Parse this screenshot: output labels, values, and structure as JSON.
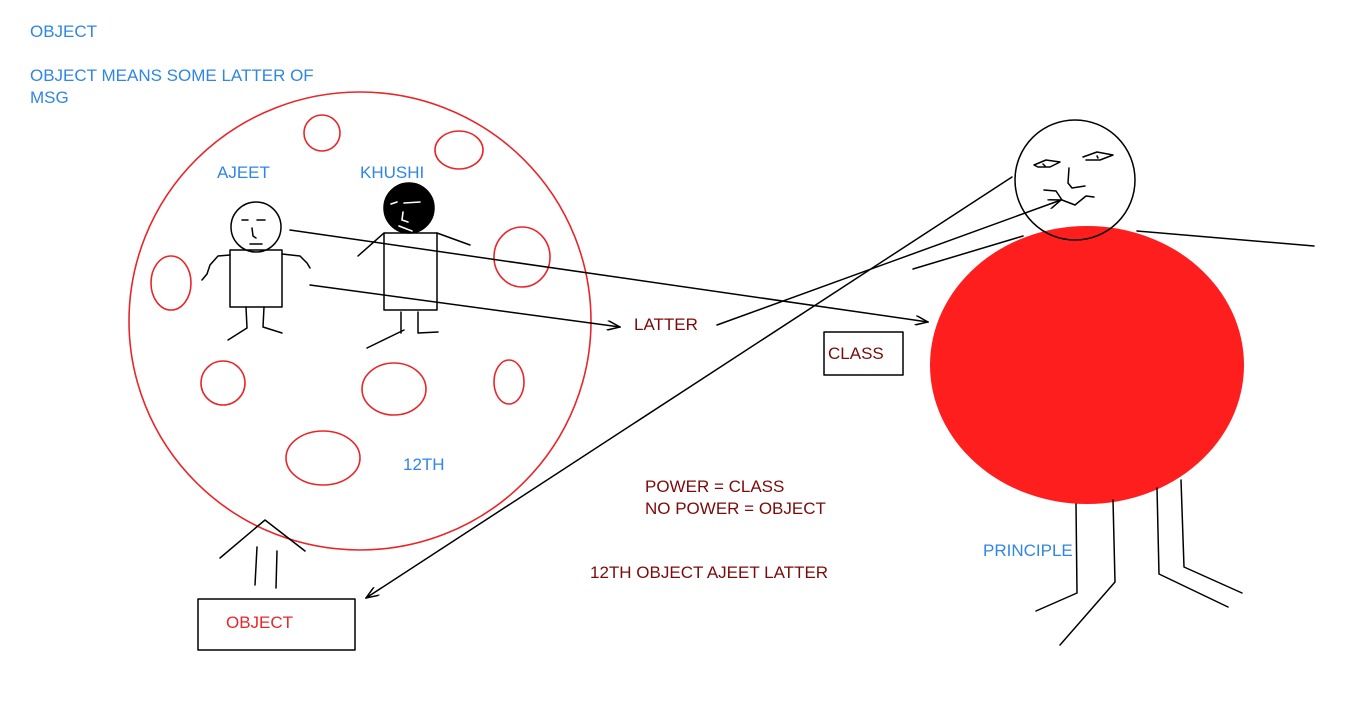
{
  "header": {
    "title": "OBJECT",
    "definition_line1": "OBJECT MEANS SOME LATTER OF",
    "definition_line2": "MSG"
  },
  "school_circle": {
    "person1_name": "AJEET",
    "person2_name": "KHUSHI",
    "class_label": "12TH"
  },
  "labels": {
    "latter": "LATTER",
    "class_box": "CLASS",
    "object_box": "OBJECT",
    "principle": "PRINCIPLE"
  },
  "notes": {
    "power_line": "POWER = CLASS",
    "no_power_line": "NO POWER = OBJECT",
    "summary": "12TH OBJECT AJEET LATTER"
  },
  "colors": {
    "blue_text": "#2f86e6",
    "maroon_text": "#7b0a0a",
    "red": "#ff1e1e",
    "red_outline": "#e8262a",
    "black": "#000000"
  }
}
